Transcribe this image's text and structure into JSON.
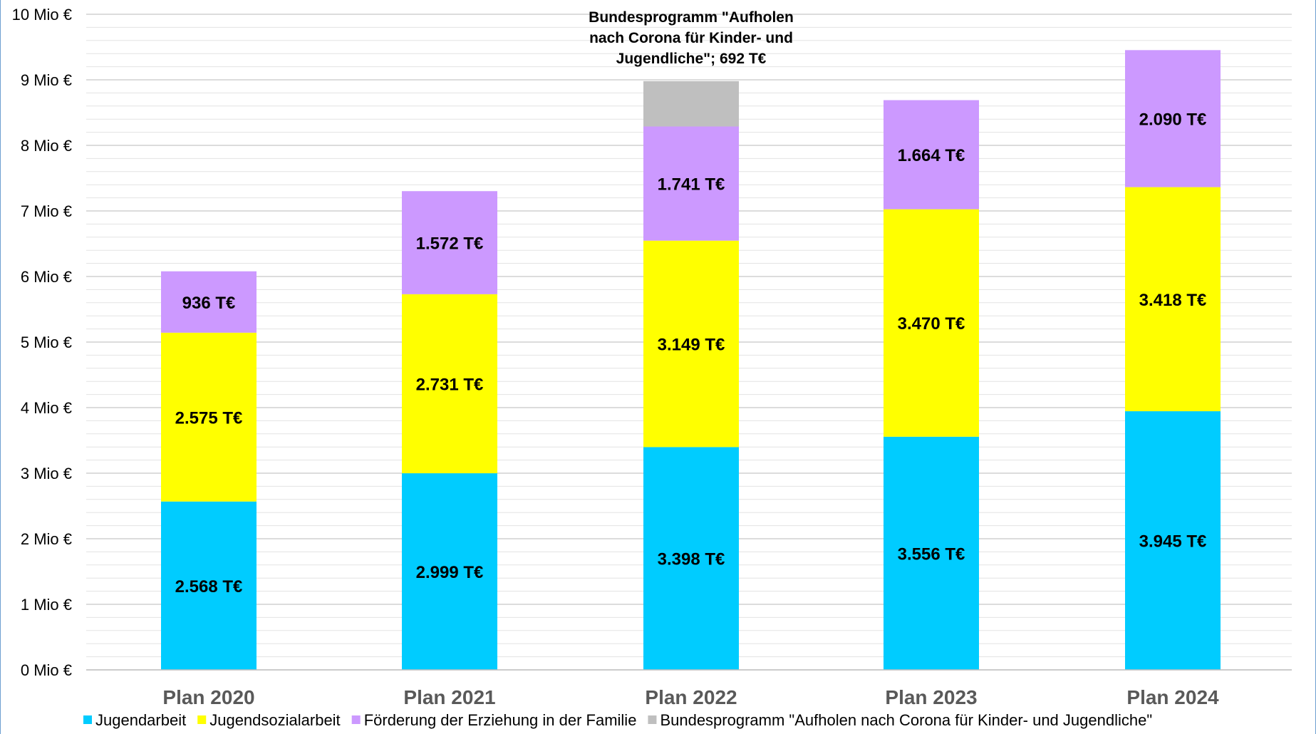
{
  "chart_data": {
    "type": "bar",
    "stacked": true,
    "categories": [
      "Plan 2020",
      "Plan 2021",
      "Plan 2022",
      "Plan 2023",
      "Plan 2024"
    ],
    "series": [
      {
        "name": "Jugendarbeit",
        "color": "#00ccff",
        "values": [
          2568,
          2999,
          3398,
          3556,
          3945
        ],
        "labels": [
          "2.568 T€",
          "2.999 T€",
          "3.398 T€",
          "3.556 T€",
          "3.945 T€"
        ]
      },
      {
        "name": "Jugendsozialarbeit",
        "color": "#ffff00",
        "values": [
          2575,
          2731,
          3149,
          3470,
          3418
        ],
        "labels": [
          "2.575 T€",
          "2.731 T€",
          "3.149 T€",
          "3.470 T€",
          "3.418 T€"
        ]
      },
      {
        "name": "Förderung der Erziehung in der Familie",
        "color": "#cc99ff",
        "values": [
          936,
          1572,
          1741,
          1664,
          2090
        ],
        "labels": [
          "936 T€",
          "1.572 T€",
          "1.741 T€",
          "1.664 T€",
          "2.090 T€"
        ]
      },
      {
        "name": "Bundesprogramm \"Aufholen nach Corona für Kinder- und Jugendliche\"",
        "color": "#bfbfbf",
        "values": [
          0,
          0,
          692,
          0,
          0
        ],
        "labels": [
          "",
          "",
          "",
          "",
          ""
        ]
      }
    ],
    "yunit": "T€",
    "ylim": [
      0,
      10000
    ],
    "yticks": [
      0,
      1000,
      2000,
      3000,
      4000,
      5000,
      6000,
      7000,
      8000,
      9000,
      10000
    ],
    "ytick_labels": [
      "0 Mio €",
      "1 Mio €",
      "2 Mio €",
      "3 Mio €",
      "4 Mio €",
      "5 Mio €",
      "6 Mio €",
      "7 Mio €",
      "8 Mio €",
      "9 Mio €",
      "10 Mio €"
    ],
    "annotation": {
      "category_index": 2,
      "lines": [
        "Bundesprogramm \"Aufholen",
        "nach Corona für Kinder- und",
        "Jugendliche\"; 692 T€"
      ]
    },
    "grid": true,
    "legend_position": "bottom"
  }
}
